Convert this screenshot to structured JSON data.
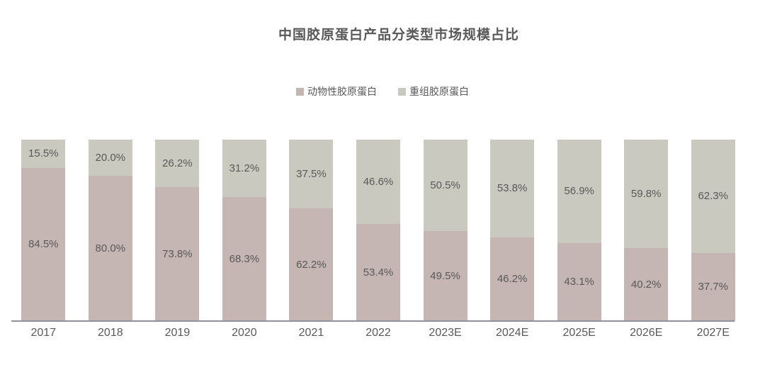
{
  "chart": {
    "title": "中国胶原蛋白产品分类型市场规模占比"
  },
  "chart_data": {
    "type": "bar",
    "stacked": true,
    "orientation": "vertical",
    "title": "中国胶原蛋白产品分类型市场规模占比",
    "categories": [
      "2017",
      "2018",
      "2019",
      "2020",
      "2021",
      "2022",
      "2023E",
      "2024E",
      "2025E",
      "2026E",
      "2027E"
    ],
    "series": [
      {
        "name": "动物性胶原蛋白",
        "color": "#c5b5b3",
        "position": "bottom",
        "values": [
          84.5,
          80.0,
          73.8,
          68.3,
          62.2,
          53.4,
          49.5,
          46.2,
          43.1,
          40.2,
          37.7
        ]
      },
      {
        "name": "重组胶原蛋白",
        "color": "#cac9bf",
        "position": "top",
        "values": [
          15.5,
          20.0,
          26.2,
          31.2,
          37.5,
          46.6,
          50.5,
          53.8,
          56.9,
          59.8,
          62.3
        ]
      }
    ],
    "value_suffix": "%",
    "value_decimals": 1,
    "ylim": [
      0,
      100
    ],
    "grid": false,
    "legend_position": "top-center",
    "data_labels": "inside-segment-center",
    "axis_line_color": "#8f919e",
    "label_color": "#595959",
    "background": "#ffffff"
  }
}
